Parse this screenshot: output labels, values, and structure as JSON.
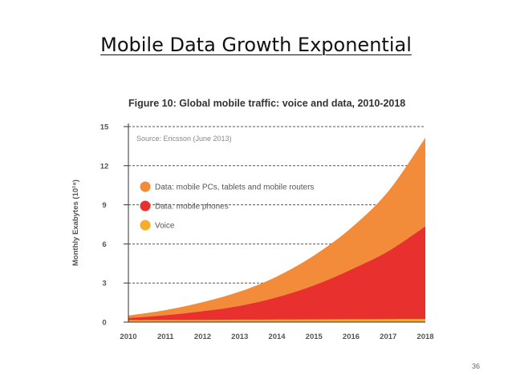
{
  "slide": {
    "title": "Mobile Data Growth Exponential",
    "page_number": "36"
  },
  "chart_data": {
    "type": "area",
    "stacked": true,
    "title": "Figure 10: Global mobile traffic: voice and data, 2010-2018",
    "source": "Source: Ericsson (June 2013)",
    "xlabel": "",
    "ylabel": "Monthly Exabytes (10¹⁸)",
    "ylim": [
      0,
      15
    ],
    "yticks": [
      0,
      3,
      6,
      9,
      12,
      15
    ],
    "categories": [
      "2010",
      "2011",
      "2012",
      "2013",
      "2014",
      "2015",
      "2016",
      "2017",
      "2018"
    ],
    "grid": "dashed horizontal",
    "legend_position": "left",
    "series": [
      {
        "name": "Voice",
        "color": "#f6ad2b",
        "values": [
          0.15,
          0.17,
          0.18,
          0.19,
          0.2,
          0.21,
          0.22,
          0.23,
          0.24
        ]
      },
      {
        "name": "Data: mobile phones",
        "color": "#e8312e",
        "values": [
          0.15,
          0.35,
          0.65,
          1.05,
          1.7,
          2.6,
          3.8,
          5.2,
          7.1
        ]
      },
      {
        "name": "Data: mobile PCs, tablets and mobile routers",
        "color": "#f28b3a",
        "values": [
          0.2,
          0.4,
          0.7,
          1.1,
          1.6,
          2.3,
          3.2,
          4.6,
          6.8
        ]
      }
    ]
  }
}
